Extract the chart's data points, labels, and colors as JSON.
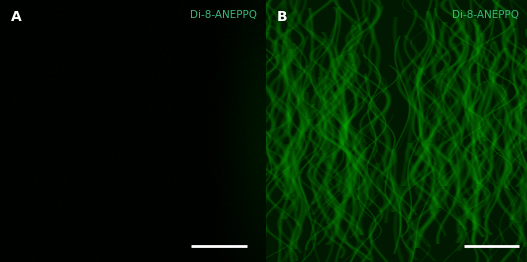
{
  "fig_width": 5.27,
  "fig_height": 2.62,
  "dpi": 100,
  "background_color": "#000000",
  "label_A": "A",
  "label_B": "B",
  "label_color": "#ffffff",
  "label_fontsize": 10,
  "label_fontweight": "bold",
  "channel_label": "Di-8-ANEPPQ",
  "channel_label_color": "#3ab87a",
  "channel_label_fontsize": 7.5,
  "scale_bar_color": "#ffffff",
  "scale_bar_linewidth": 2,
  "seed": 42
}
